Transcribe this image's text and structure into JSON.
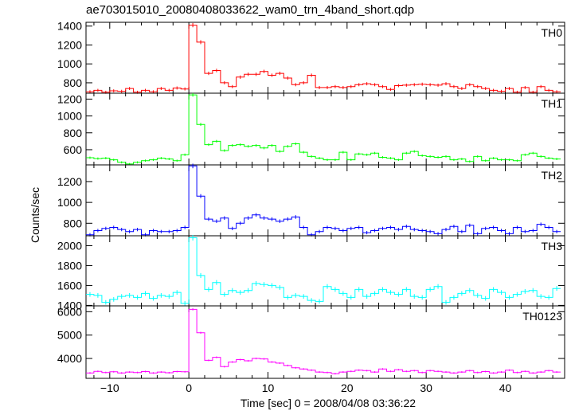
{
  "chart_data": {
    "type": "line",
    "title": "ae703015010_20080408033622_wam0_trn_4band_short.qdp",
    "xlabel": "Time [sec] 0 = 2008/04/08 03:36:22",
    "ylabel": "Counts/sec",
    "xlim": [
      -13,
      47.5
    ],
    "x_ticks": [
      -10,
      0,
      10,
      20,
      30,
      40
    ],
    "x_tick_labels": [
      "−10",
      "0",
      "10",
      "20",
      "30",
      "40"
    ],
    "bin_width": 1,
    "x": [
      -12.5,
      -11.5,
      -10.5,
      -9.5,
      -8.5,
      -7.5,
      -6.5,
      -5.5,
      -4.5,
      -3.5,
      -2.5,
      -1.5,
      -0.5,
      0.5,
      1.5,
      2.5,
      3.5,
      4.5,
      5.5,
      6.5,
      7.5,
      8.5,
      9.5,
      10.5,
      11.5,
      12.5,
      13.5,
      14.5,
      15.5,
      16.5,
      17.5,
      18.5,
      19.5,
      20.5,
      21.5,
      22.5,
      23.5,
      24.5,
      25.5,
      26.5,
      27.5,
      28.5,
      29.5,
      30.5,
      31.5,
      32.5,
      33.5,
      34.5,
      35.5,
      36.5,
      37.5,
      38.5,
      39.5,
      40.5,
      41.5,
      42.5,
      43.5,
      44.5,
      45.5,
      46.5
    ],
    "panels": [
      {
        "label": "TH0",
        "color": "#ff0000",
        "ylim": [
          690,
          1440
        ],
        "y_ticks": [
          800,
          1000,
          1200,
          1400
        ],
        "y_tick_labels": [
          "800",
          "1000",
          "1200",
          "1400"
        ],
        "values": [
          705,
          720,
          700,
          715,
          710,
          740,
          700,
          720,
          705,
          740,
          720,
          745,
          735,
          1410,
          1230,
          900,
          930,
          800,
          760,
          860,
          890,
          890,
          920,
          880,
          900,
          850,
          780,
          800,
          880,
          750,
          750,
          760,
          750,
          760,
          780,
          790,
          780,
          760,
          730,
          770,
          775,
          780,
          785,
          780,
          775,
          790,
          760,
          740,
          780,
          760,
          740,
          720,
          710,
          740,
          700,
          750,
          700,
          760,
          720,
          705
        ]
      },
      {
        "label": "TH1",
        "color": "#00ff00",
        "ylim": [
          420,
          1270
        ],
        "y_ticks": [
          600,
          800,
          1000,
          1200
        ],
        "y_tick_labels": [
          "600",
          "800",
          "1000",
          "1200"
        ],
        "values": [
          505,
          495,
          500,
          480,
          450,
          430,
          450,
          470,
          480,
          500,
          490,
          470,
          540,
          1250,
          900,
          660,
          700,
          590,
          650,
          660,
          640,
          650,
          620,
          650,
          580,
          640,
          670,
          570,
          520,
          500,
          480,
          480,
          570,
          480,
          550,
          540,
          560,
          510,
          500,
          480,
          560,
          580,
          530,
          520,
          510,
          520,
          480,
          490,
          460,
          520,
          470,
          500,
          480,
          480,
          470,
          540,
          560,
          520,
          500,
          490
        ]
      },
      {
        "label": "TH2",
        "color": "#0000ff",
        "ylim": [
          680,
          1360
        ],
        "y_ticks": [
          800,
          1000,
          1200
        ],
        "y_tick_labels": [
          "800",
          "1000",
          "1200"
        ],
        "values": [
          690,
          730,
          750,
          760,
          740,
          720,
          740,
          690,
          730,
          720,
          720,
          730,
          760,
          1350,
          1060,
          840,
          820,
          850,
          750,
          800,
          850,
          880,
          850,
          840,
          820,
          840,
          860,
          760,
          690,
          720,
          760,
          750,
          730,
          750,
          760,
          710,
          730,
          750,
          760,
          740,
          770,
          740,
          730,
          720,
          700,
          740,
          770,
          720,
          780,
          700,
          750,
          760,
          730,
          700,
          760,
          720,
          730,
          790,
          760,
          720
        ]
      },
      {
        "label": "TH3",
        "color": "#00ffff",
        "ylim": [
          1395,
          2100
        ],
        "y_ticks": [
          1400,
          1600,
          1800,
          2000
        ],
        "y_tick_labels": [
          "1400",
          "1600",
          "1800",
          "2000"
        ],
        "values": [
          1510,
          1500,
          1430,
          1460,
          1490,
          1500,
          1480,
          1520,
          1470,
          1500,
          1490,
          1530,
          1420,
          2080,
          1700,
          1560,
          1630,
          1510,
          1550,
          1530,
          1550,
          1620,
          1610,
          1600,
          1580,
          1480,
          1500,
          1490,
          1450,
          1440,
          1590,
          1560,
          1520,
          1480,
          1560,
          1490,
          1520,
          1560,
          1530,
          1510,
          1560,
          1490,
          1480,
          1560,
          1590,
          1430,
          1480,
          1520,
          1550,
          1500,
          1470,
          1560,
          1530,
          1480,
          1510,
          1540,
          1550,
          1490,
          1480,
          1570
        ]
      },
      {
        "label": "TH0123",
        "color": "#ff00ff",
        "ylim": [
          3150,
          6250
        ],
        "y_ticks": [
          4000,
          5000,
          6000
        ],
        "y_tick_labels": [
          "4000",
          "5000",
          "6000"
        ],
        "values": [
          3380,
          3450,
          3400,
          3430,
          3380,
          3420,
          3400,
          3440,
          3380,
          3420,
          3390,
          3440,
          3430,
          6100,
          5100,
          3920,
          4050,
          3650,
          3850,
          3950,
          3900,
          4000,
          3980,
          3850,
          3800,
          3700,
          3600,
          3550,
          3500,
          3420,
          3400,
          3350,
          3420,
          3450,
          3500,
          3480,
          3420,
          3550,
          3450,
          3520,
          3450,
          3480,
          3400,
          3480,
          3450,
          3420,
          3380,
          3420,
          3480,
          3400,
          3440,
          3380,
          3420,
          3500,
          3400,
          3450,
          3380,
          3420,
          3480,
          3420
        ]
      }
    ]
  }
}
